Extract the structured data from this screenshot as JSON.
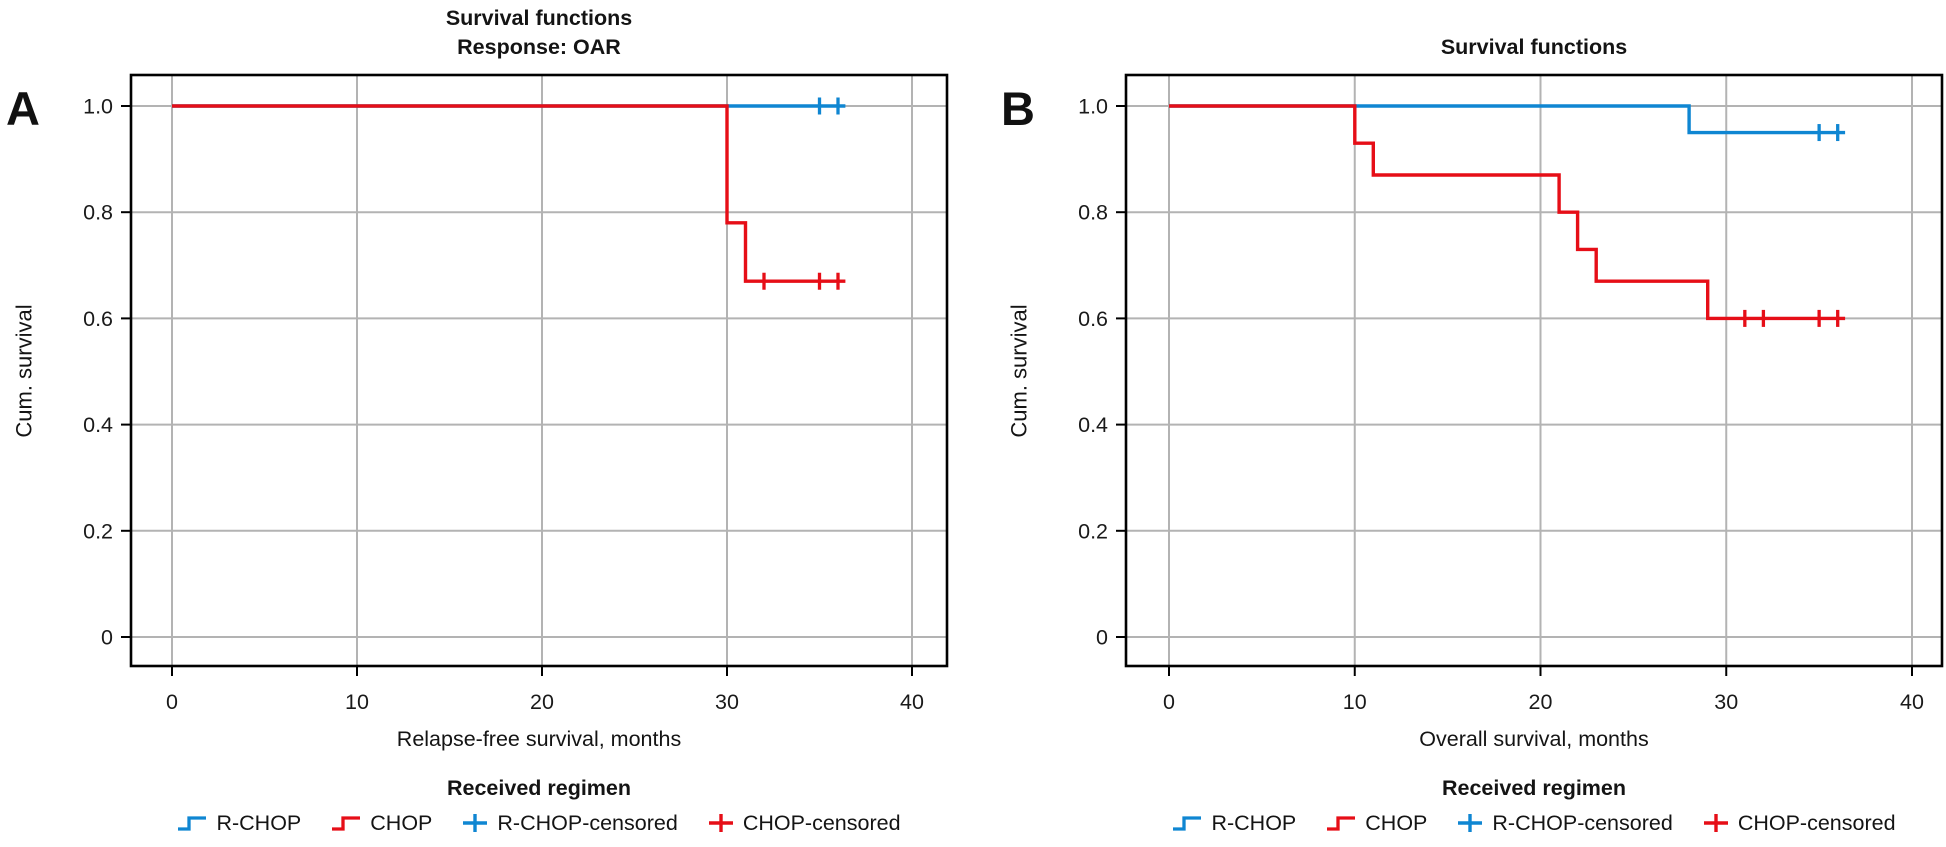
{
  "figure": {
    "background": "#ffffff"
  },
  "colors": {
    "rchop": "#0f86d2",
    "chop": "#e60e17",
    "grid": "#b3b3b3",
    "frame": "#000000",
    "text": "#1a1a1a"
  },
  "legend": {
    "title": "Received regimen",
    "items": [
      {
        "label": "R-CHOP",
        "color_key": "rchop",
        "marker": "step"
      },
      {
        "label": "CHOP",
        "color_key": "chop",
        "marker": "step"
      },
      {
        "label": "R-CHOP-censored",
        "color_key": "rchop",
        "marker": "plus"
      },
      {
        "label": "CHOP-censored",
        "color_key": "chop",
        "marker": "plus"
      }
    ]
  },
  "chart_data": [
    {
      "panel_label": "A",
      "type": "line",
      "subtype": "kaplan-meier-step",
      "title": "Survival functions",
      "subtitle": "Response: OAR",
      "xlabel": "Relapse-free survival, months",
      "ylabel": "Cum. survival",
      "xticks": [
        0,
        10,
        20,
        30,
        40
      ],
      "yticks": [
        0,
        0.2,
        0.4,
        0.6,
        0.8,
        1.0
      ],
      "ytick_labels": [
        "0",
        "0.2",
        "0.4",
        "0.6",
        "0.8",
        "1.0"
      ],
      "xlim": [
        -2.2,
        41.8
      ],
      "ylim": [
        -0.06,
        1.06
      ],
      "grid": true,
      "legend_position": "bottom",
      "series": [
        {
          "name": "R-CHOP",
          "color_key": "rchop",
          "points": [
            [
              0,
              1.0
            ],
            [
              36.4,
              1.0
            ]
          ],
          "censored": [
            [
              35,
              1.0
            ],
            [
              36,
              1.0
            ]
          ]
        },
        {
          "name": "CHOP",
          "color_key": "chop",
          "points": [
            [
              0,
              1.0
            ],
            [
              30,
              1.0
            ],
            [
              30,
              0.78
            ],
            [
              31,
              0.78
            ],
            [
              31,
              0.67
            ],
            [
              36.4,
              0.67
            ]
          ],
          "censored": [
            [
              32,
              0.67
            ],
            [
              35,
              0.67
            ],
            [
              36,
              0.67
            ]
          ]
        }
      ]
    },
    {
      "panel_label": "B",
      "type": "line",
      "subtype": "kaplan-meier-step",
      "title": "Survival functions",
      "subtitle": "",
      "xlabel": "Overall survival, months",
      "ylabel": "Cum. survival",
      "xticks": [
        0,
        10,
        20,
        30,
        40
      ],
      "yticks": [
        0,
        0.2,
        0.4,
        0.6,
        0.8,
        1.0
      ],
      "ytick_labels": [
        "0",
        "0.2",
        "0.4",
        "0.6",
        "0.8",
        "1.0"
      ],
      "xlim": [
        -2.3,
        41.7
      ],
      "ylim": [
        -0.06,
        1.06
      ],
      "grid": true,
      "legend_position": "bottom",
      "series": [
        {
          "name": "R-CHOP",
          "color_key": "rchop",
          "points": [
            [
              0,
              1.0
            ],
            [
              28,
              1.0
            ],
            [
              28,
              0.95
            ],
            [
              36.4,
              0.95
            ]
          ],
          "censored": [
            [
              35,
              0.95
            ],
            [
              36,
              0.95
            ]
          ]
        },
        {
          "name": "CHOP",
          "color_key": "chop",
          "points": [
            [
              0,
              1.0
            ],
            [
              10,
              1.0
            ],
            [
              10,
              0.93
            ],
            [
              11,
              0.93
            ],
            [
              11,
              0.87
            ],
            [
              21,
              0.87
            ],
            [
              21,
              0.8
            ],
            [
              22,
              0.8
            ],
            [
              22,
              0.73
            ],
            [
              23,
              0.73
            ],
            [
              23,
              0.67
            ],
            [
              29,
              0.67
            ],
            [
              29,
              0.6
            ],
            [
              36.4,
              0.6
            ]
          ],
          "censored": [
            [
              31,
              0.6
            ],
            [
              32,
              0.6
            ],
            [
              35,
              0.6
            ],
            [
              36,
              0.6
            ]
          ]
        }
      ]
    }
  ]
}
